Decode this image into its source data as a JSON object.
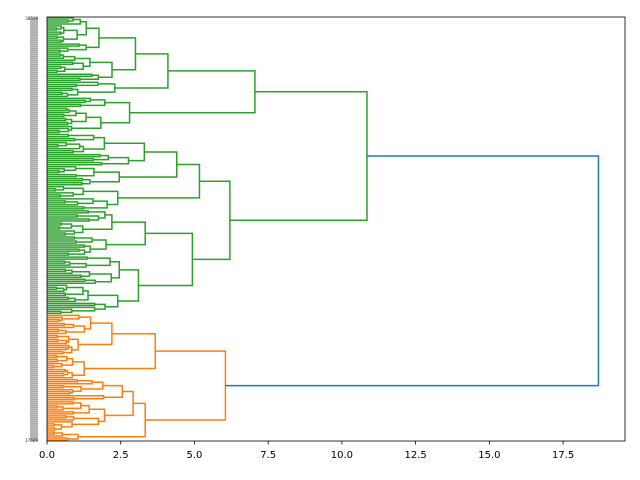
{
  "chart_data": {
    "type": "dendrogram",
    "orientation": "right",
    "title": "",
    "xlabel": "",
    "ylabel": "",
    "xlim": [
      0,
      19.6
    ],
    "x_ticks": [
      "0.0",
      "2.5",
      "5.0",
      "7.5",
      "10.0",
      "12.5",
      "15.0",
      "17.5"
    ],
    "x_tick_values": [
      0,
      2.5,
      5,
      7.5,
      10,
      12.5,
      15,
      17.5
    ],
    "colors": {
      "green": "#2ca02c",
      "orange": "#ff7f0e",
      "above_threshold": "#1f77b4"
    },
    "leaf_labels_readable": {
      "first": "38519",
      "last": "17689"
    },
    "total_leaves": 211,
    "tree": {
      "h": 18.7,
      "color": "above_threshold",
      "c": [
        {
          "h": 10.85,
          "color": "green",
          "c": [
            {
              "h": 7.05,
              "c": [
                {
                  "h": 4.1,
                  "c": [
                    {
                      "h": 3.0,
                      "n": 32
                    },
                    {
                      "h": 2.3,
                      "n": 8
                    }
                  ]
                },
                {
                  "h": 2.8,
                  "n": 18
                }
              ]
            },
            {
              "h": 6.2,
              "c": [
                {
                  "h": 5.17,
                  "c": [
                    {
                      "h": 4.4,
                      "c": [
                        {
                          "h": 3.3,
                          "n": 16
                        },
                        {
                          "h": 2.45,
                          "n": 10
                        }
                      ]
                    },
                    {
                      "h": 2.4,
                      "n": 12
                    }
                  ]
                },
                {
                  "h": 4.93,
                  "c": [
                    {
                      "h": 3.33,
                      "c": [
                        {
                          "h": 2.2,
                          "n": 13
                        },
                        {
                          "h": 2.0,
                          "n": 10
                        }
                      ]
                    },
                    {
                      "h": 3.1,
                      "c": [
                        {
                          "h": 2.45,
                          "n": 14
                        },
                        {
                          "h": 2.4,
                          "n": 15
                        }
                      ]
                    }
                  ]
                }
              ]
            }
          ]
        },
        {
          "h": 6.05,
          "color": "orange",
          "c": [
            {
              "h": 3.67,
              "c": [
                {
                  "h": 2.2,
                  "n": 20
                },
                {
                  "h": 1.26,
                  "n": 12
                }
              ]
            },
            {
              "h": 3.33,
              "c": [
                {
                  "h": 2.92,
                  "c": [
                    {
                      "h": 2.55,
                      "n": 11
                    },
                    {
                      "h": 1.95,
                      "n": 15
                    }
                  ]
                },
                {
                  "h": 1.05,
                  "n": 5
                }
              ]
            }
          ]
        }
      ]
    }
  }
}
